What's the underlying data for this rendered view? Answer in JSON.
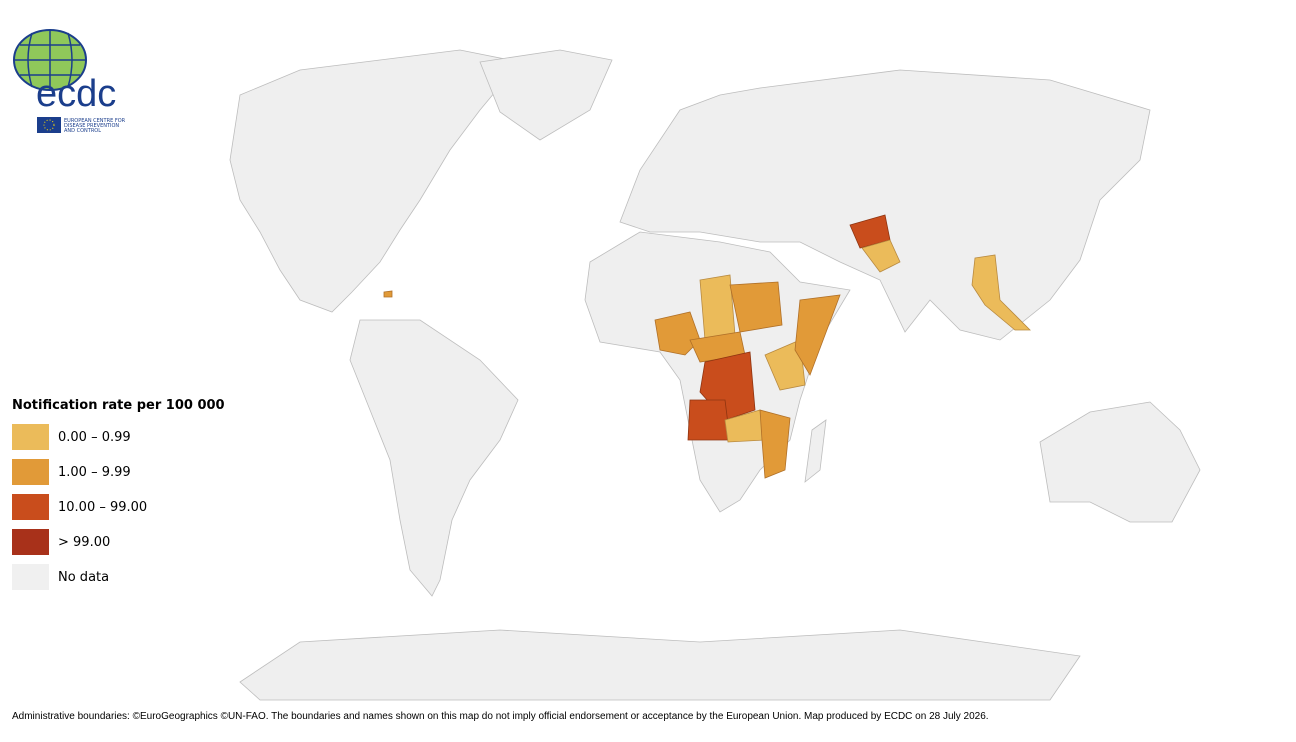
{
  "logo": {
    "name": "ecdc",
    "lines": [
      "EUROPEAN CENTRE FOR",
      "DISEASE PREVENTION",
      "AND CONTROL"
    ]
  },
  "legend": {
    "title": "Notification rate per 100 000",
    "items": [
      {
        "label": "0.00 – 0.99",
        "color": "#ebbb5a"
      },
      {
        "label": "1.00 – 9.99",
        "color": "#e19a38"
      },
      {
        "label": "10.00 – 99.00",
        "color": "#c94d1c"
      },
      {
        "label": "> 99.00",
        "color": "#a8311a"
      },
      {
        "label": "No data",
        "color": "#f0f0f0"
      }
    ]
  },
  "footer": "Administrative boundaries: ©EuroGeographics ©UN-FAO. The boundaries and names shown on this map do not imply official endorsement or acceptance by the European Union. Map produced by ECDC on 28 July 2026."
}
